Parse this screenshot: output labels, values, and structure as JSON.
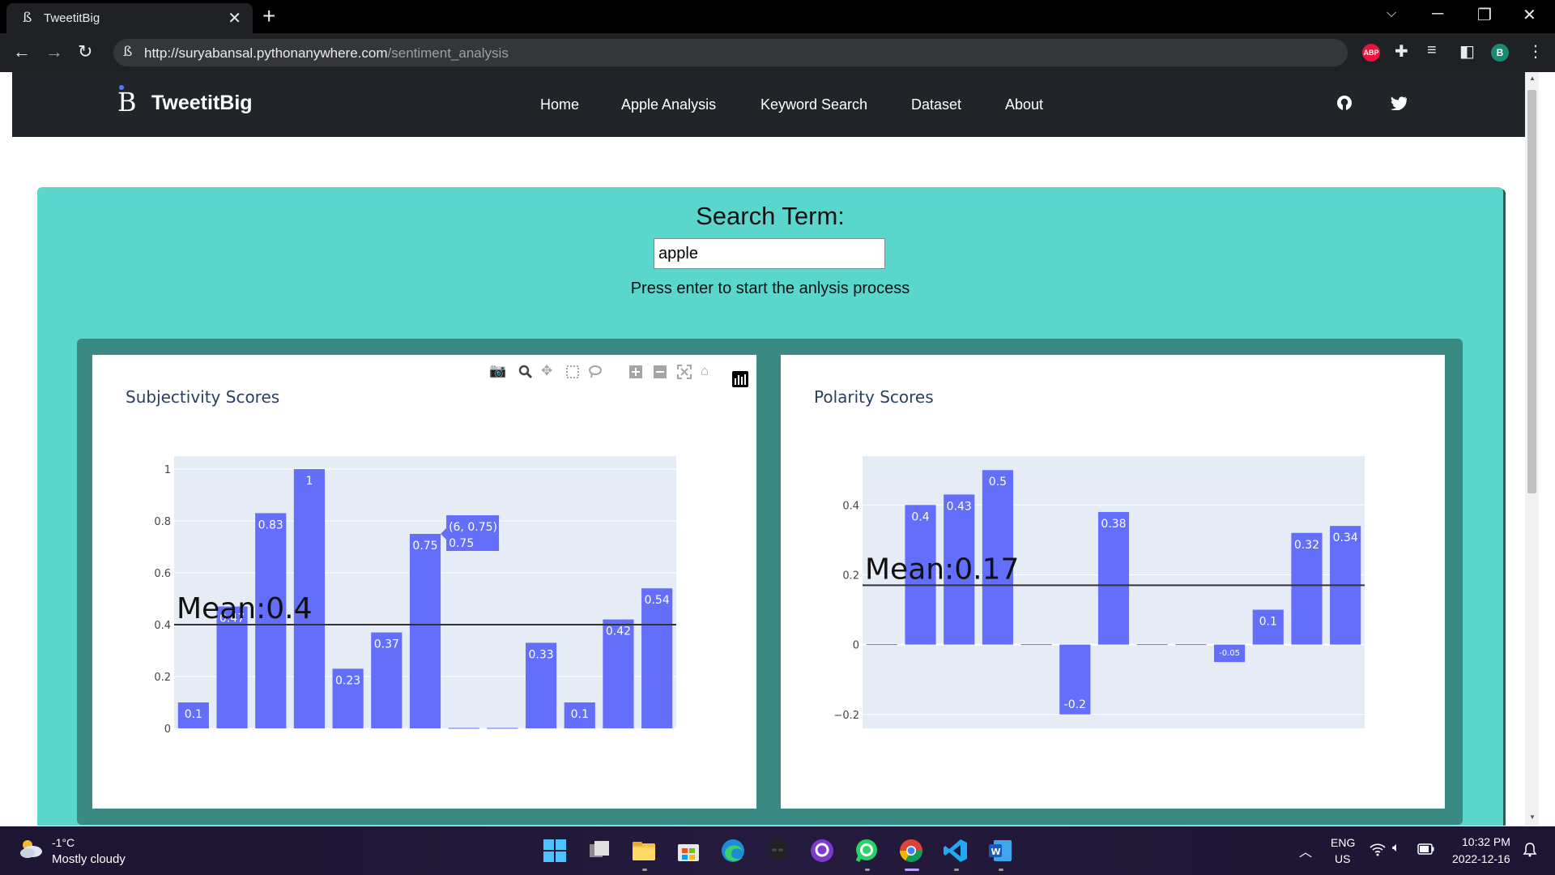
{
  "browser": {
    "tab_title": "TweetitBig",
    "url_host": "http://suryabansal.pythonanywhere.com",
    "url_path": "/sentiment_analysis",
    "profile_initial": "B",
    "extension_abp": "ABP"
  },
  "site": {
    "brand": "TweetitBig",
    "menu": [
      "Home",
      "Apple Analysis",
      "Keyword Search",
      "Dataset",
      "About"
    ],
    "social_icons": [
      "github-icon",
      "twitter-icon"
    ]
  },
  "search": {
    "heading": "Search Term:",
    "value": "apple",
    "hint": "Press enter to start the anlysis process"
  },
  "chart_data": [
    {
      "type": "bar",
      "title": "Subjectivity Scores",
      "x": [
        0,
        1,
        2,
        3,
        4,
        5,
        6,
        7,
        8,
        9,
        10,
        11,
        12
      ],
      "values": [
        0.1,
        0.47,
        0.83,
        1,
        0.23,
        0.37,
        0.75,
        0,
        0,
        0.33,
        0.1,
        0.42,
        0.54
      ],
      "labels": [
        "0.1",
        "0.47",
        "0.83",
        "1",
        "0.23",
        "0.37",
        "0.75",
        "",
        "",
        "0.33",
        "0.1",
        "0.42",
        "0.54"
      ],
      "ylim": [
        0,
        1.05
      ],
      "yticks": [
        0,
        0.2,
        0.4,
        0.6,
        0.8,
        1
      ],
      "ytick_labels": [
        "0",
        "0.2",
        "0.4",
        "0.6",
        "0.8",
        "1"
      ],
      "mean": 0.4,
      "mean_label": "Mean:0.4",
      "hover": {
        "index": 6,
        "text1": "(6, 0.75)",
        "text2": "0.75"
      },
      "color": "#636efa",
      "grid": true
    },
    {
      "type": "bar",
      "title": "Polarity Scores",
      "x": [
        0,
        1,
        2,
        3,
        4,
        5,
        6,
        7,
        8,
        9,
        10,
        11,
        12
      ],
      "values": [
        0,
        0.4,
        0.43,
        0.5,
        0,
        -0.2,
        0.38,
        0,
        0,
        -0.05,
        0.1,
        0.32,
        0.34
      ],
      "labels": [
        "",
        "0.4",
        "0.43",
        "0.5",
        "",
        "-0.2",
        "0.38",
        "",
        "",
        "-0.05",
        "0.1",
        "0.32",
        "0.34"
      ],
      "ylim": [
        -0.24,
        0.54
      ],
      "yticks": [
        -0.2,
        0,
        0.2,
        0.4
      ],
      "ytick_labels": [
        "−0.2",
        "0",
        "0.2",
        "0.4"
      ],
      "mean": 0.17,
      "mean_label": "Mean:0.17",
      "color": "#636efa",
      "grid": true
    }
  ],
  "taskbar": {
    "temperature": "-1°C",
    "weather": "Mostly cloudy",
    "lang1": "ENG",
    "lang2": "US",
    "time": "10:32 PM",
    "date": "2022-12-16"
  }
}
